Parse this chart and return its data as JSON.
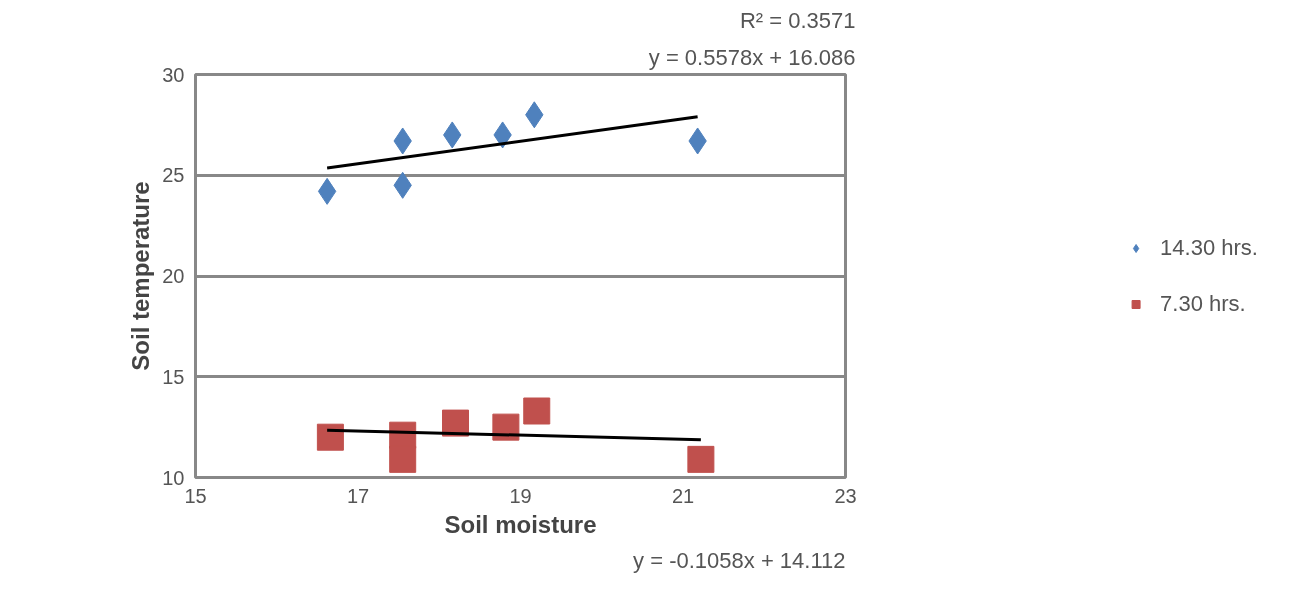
{
  "chart_data": {
    "type": "scatter",
    "xlabel": "Soil moisture",
    "ylabel": "Soil temperature",
    "xlim": [
      15,
      23
    ],
    "xticks": [
      15,
      17,
      19,
      21,
      23
    ],
    "ylim": [
      10,
      30
    ],
    "yticks": [
      10,
      15,
      20,
      25,
      30
    ],
    "grid": "y",
    "legend": "right",
    "series": [
      {
        "name": "14.30 hrs.",
        "color": "#4f81bd",
        "marker": "diamond",
        "x": [
          16.62,
          17.55,
          17.55,
          18.16,
          18.78,
          19.17,
          21.18
        ],
        "values": [
          24.2,
          24.5,
          26.7,
          27.0,
          27.0,
          28.0,
          26.7
        ]
      },
      {
        "name": "7.30 hrs.",
        "color": "#c0504d",
        "marker": "square",
        "x": [
          16.66,
          17.55,
          17.55,
          18.2,
          18.82,
          19.2,
          21.22
        ],
        "values": [
          12.0,
          12.1,
          10.9,
          12.7,
          12.5,
          13.3,
          10.9
        ]
      },
      {
        "type": "line",
        "color": "#000000",
        "marker": "none",
        "x": [
          16.62,
          21.18
        ],
        "values": [
          25.36,
          27.9
        ]
      },
      {
        "type": "line",
        "color": "#000000",
        "marker": "none",
        "x": [
          16.62,
          21.22
        ],
        "values": [
          12.35,
          11.87
        ]
      }
    ],
    "annotations": [
      "y = 0.5578x + 16.086",
      "R² = 0.3571",
      "y = -0.1058x + 14.112"
    ]
  }
}
